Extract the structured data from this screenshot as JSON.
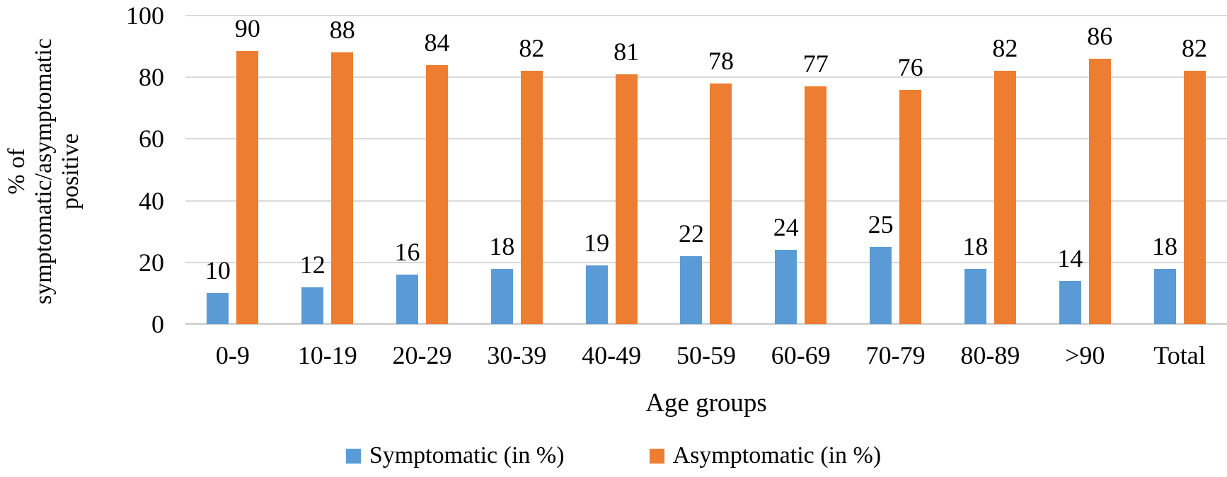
{
  "chart_data": {
    "type": "bar",
    "title": "",
    "categories": [
      "0-9",
      "10-19",
      "20-29",
      "30-39",
      "40-49",
      "50-59",
      "60-69",
      "70-79",
      "80-89",
      ">90",
      "Total"
    ],
    "series": [
      {
        "name": "Symptomatic (in %)",
        "color": "#5B9BD5",
        "values": [
          10,
          12,
          16,
          18,
          19,
          22,
          24,
          25,
          18,
          14,
          18
        ]
      },
      {
        "name": "Asymptomatic (in %)",
        "color": "#ED7D31",
        "values": [
          90,
          88,
          84,
          82,
          81,
          78,
          77,
          76,
          82,
          86,
          82
        ]
      }
    ],
    "xlabel": "Age groups",
    "ylabel": "% of symptomatic/asymptomatic positive",
    "ylim": [
      0,
      100
    ],
    "yticks": [
      0,
      20,
      40,
      60,
      80,
      100
    ],
    "grid": true,
    "data_labels": true,
    "legend_position": "bottom"
  },
  "colors": {
    "gridline": "#D9D9D9",
    "axis_line": "#D2D2D2",
    "text": "#000000",
    "background": "#FFFFFF"
  }
}
